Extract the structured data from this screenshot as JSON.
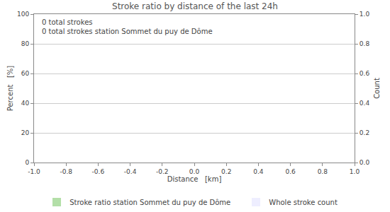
{
  "chart_data": {
    "type": "bar",
    "title": "Stroke ratio by distance of the last 24h",
    "x_label": "Distance   [km]",
    "y_label": "Percent   [%]",
    "y2_label": "Count",
    "annotations": [
      "0 total strokes",
      "0 total strokes station Sommet du puy de Dôme"
    ],
    "x": [],
    "series": [
      {
        "name": "Stroke ratio station Sommet du puy de Dôme",
        "color": "#b3dfa8",
        "values": []
      },
      {
        "name": "Whole stroke count",
        "color": "#eeeeff",
        "values": [],
        "axis": "y2"
      }
    ],
    "xlim": [
      -1,
      1
    ],
    "xticks": [
      {
        "value": -1,
        "label": "-1.0"
      },
      -0.8,
      -0.6,
      -0.4,
      -0.2,
      {
        "value": 0,
        "label": "0.0"
      },
      0.2,
      0.4,
      0.6,
      0.8,
      {
        "value": 1,
        "label": "1.0"
      }
    ],
    "ylim": [
      0,
      100
    ],
    "yticks": [
      0,
      20,
      40,
      60,
      80,
      100
    ],
    "y2lim": [
      0,
      1
    ],
    "y2ticks": [
      {
        "value": 0,
        "label": "0.0"
      },
      0.2,
      0.4,
      0.6,
      0.8,
      {
        "value": 1,
        "label": "1.0"
      }
    ],
    "grid": true
  }
}
